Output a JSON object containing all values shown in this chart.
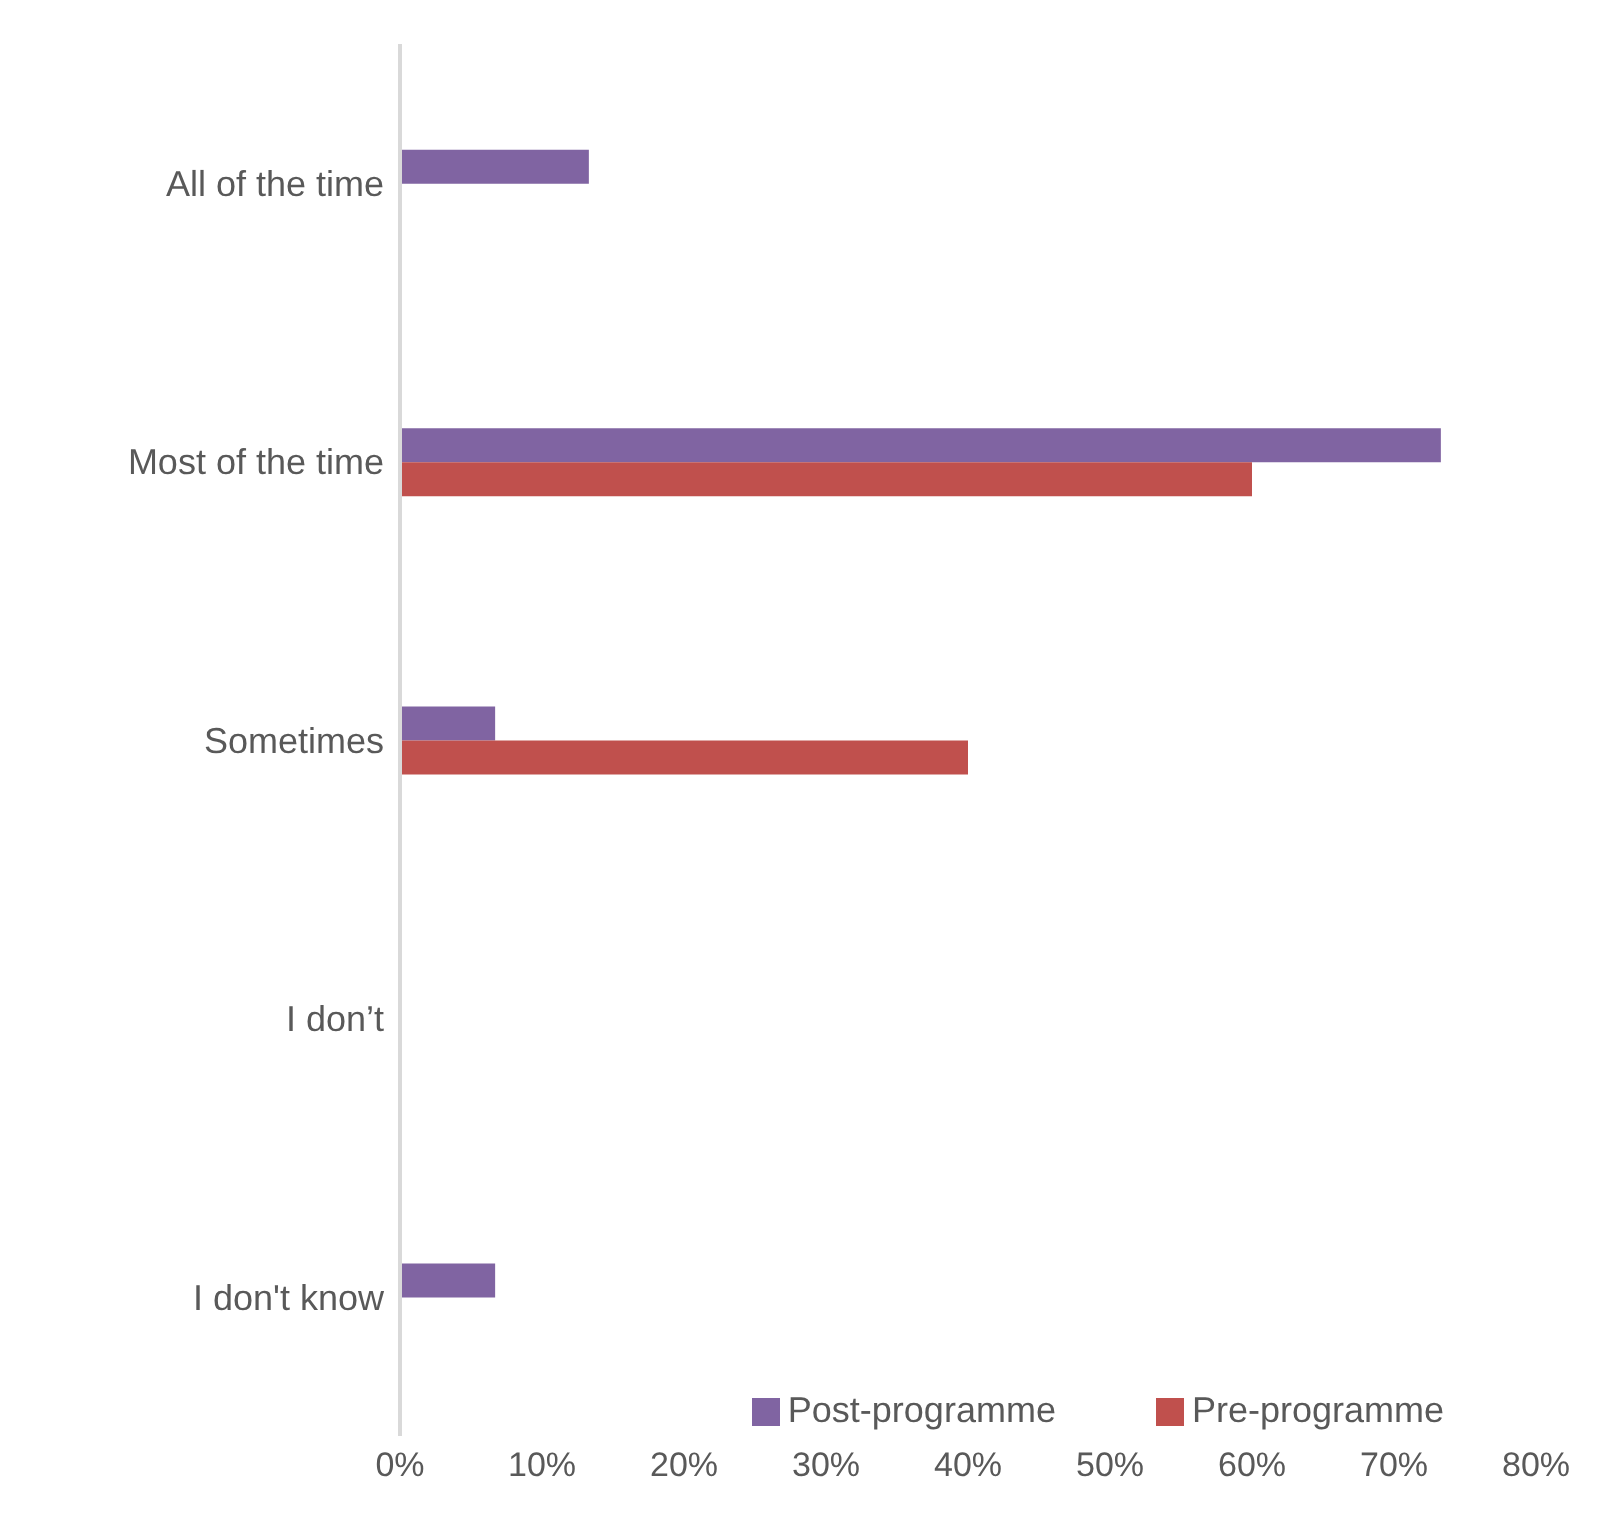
{
  "chart_data": {
    "type": "bar",
    "orientation": "horizontal",
    "categories": [
      "All of the time",
      "Most of the time",
      "Sometimes",
      "I don’t",
      "I don't know"
    ],
    "series": [
      {
        "name": "Post-programme",
        "color": "#8064a2",
        "values": [
          13.3,
          73.3,
          6.7,
          0,
          6.7
        ]
      },
      {
        "name": "Pre-programme",
        "color": "#c0504d",
        "values": [
          0,
          60,
          40,
          0,
          0
        ]
      }
    ],
    "xlim": [
      0,
      80
    ],
    "xticks": [
      {
        "value": 0,
        "label": "0%"
      },
      {
        "value": 10,
        "label": "10%"
      },
      {
        "value": 20,
        "label": "20%"
      },
      {
        "value": 30,
        "label": "30%"
      },
      {
        "value": 40,
        "label": "40%"
      },
      {
        "value": 50,
        "label": "50%"
      },
      {
        "value": 60,
        "label": "60%"
      },
      {
        "value": 70,
        "label": "70%"
      },
      {
        "value": 80,
        "label": "80%"
      }
    ],
    "grid": false,
    "legend": "bottom right"
  }
}
